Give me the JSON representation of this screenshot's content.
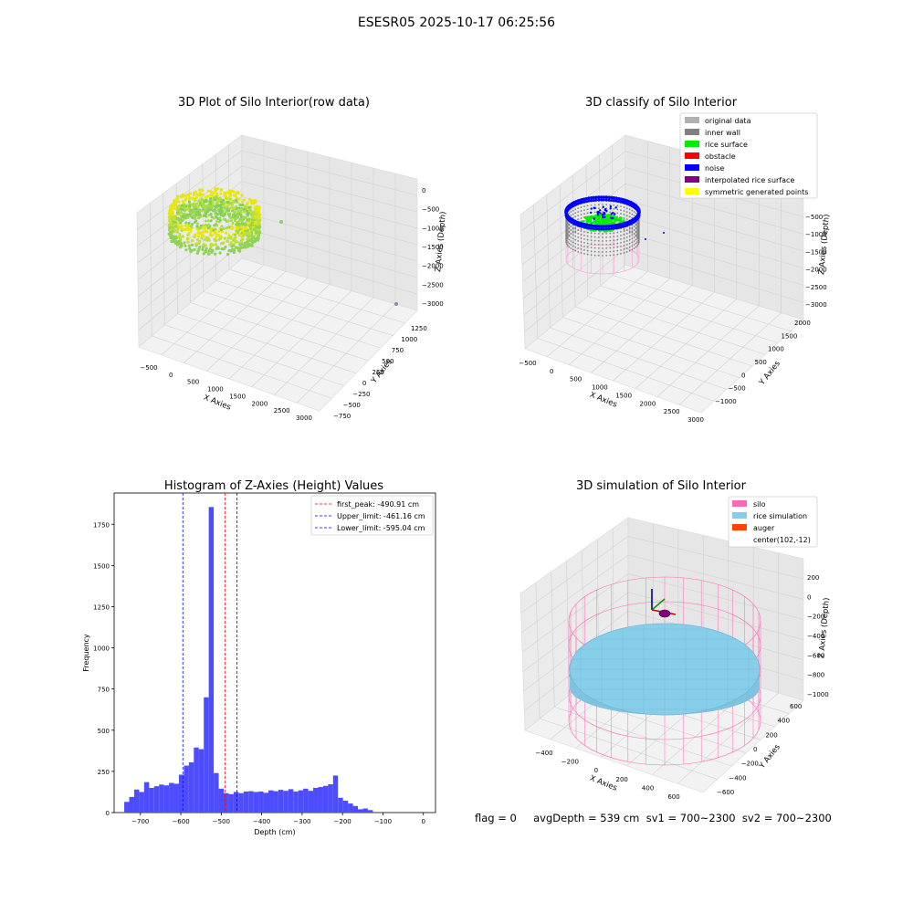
{
  "figure": {
    "suptitle": "ESESR05 2025-10-17 06:25:56",
    "status_text": "flag = 0     avgDepth = 539 cm  sv1 = 700~2300  sv2 = 700~2300"
  },
  "colors": {
    "hist_bar": "#4d4dff",
    "silo": "#ff69b4",
    "rice": "#87ceeb",
    "auger": "#ff4500",
    "inner_wall": "#808080",
    "rice_surface": "#00ee00",
    "noise": "#0000ff",
    "original": "#b0b0b0",
    "interpolated": "#800080",
    "symmetric": "#ffff00"
  },
  "chart_data": [
    {
      "type": "scatter",
      "title": "3D Plot of Silo Interior(row data)",
      "xlabel": "X Axies",
      "ylabel": "Y Axies",
      "zlabel": "Z Axies (Depth)",
      "x_ticks": [
        "−500",
        "0",
        "500",
        "1000",
        "1500",
        "2000",
        "2500",
        "3000"
      ],
      "y_ticks": [
        "−750",
        "−500",
        "−250",
        "0",
        "250",
        "500",
        "750",
        "1000",
        "1250"
      ],
      "z_ticks": [
        "0",
        "−500",
        "−1000",
        "−1500",
        "−2000",
        "−2500",
        "−3000"
      ],
      "xlim": [
        -600,
        3100
      ],
      "ylim": [
        -800,
        1400
      ],
      "zlim": [
        -3200,
        100
      ],
      "colormap": "viridis-yellow",
      "outliers": [
        {
          "x": 1200,
          "y": 300,
          "z": -800
        },
        {
          "x": 3000,
          "y": 1100,
          "z": -3000
        }
      ]
    },
    {
      "type": "scatter",
      "title": "3D classify of Silo Interior",
      "xlabel": "X Axies",
      "ylabel": "Y Axies",
      "zlabel": "Z Axies (Depth)",
      "x_ticks": [
        "−500",
        "0",
        "500",
        "1000",
        "1500",
        "2000",
        "2500",
        "3000"
      ],
      "y_ticks": [
        "−1000",
        "−500",
        "0",
        "500",
        "1000",
        "1500",
        "2000"
      ],
      "z_ticks": [
        "−500",
        "−1000",
        "−1500",
        "−2000",
        "−2500",
        "−3000"
      ],
      "legend": [
        "original data",
        "inner wall",
        "rice surface",
        "obstacle",
        "noise",
        "interpolated rice surface",
        "symmetric generated points"
      ],
      "legend_colors": [
        "#b0b0b0",
        "#808080",
        "#00ee00",
        "#ff0000",
        "#0000ff",
        "#800080",
        "#ffff00"
      ],
      "legend_position": "top-right"
    },
    {
      "type": "bar",
      "title": "Histogram of Z-Axies (Height) Values",
      "xlabel": "Depth (cm)",
      "ylabel": "Frequency",
      "xlim": [
        -765,
        30
      ],
      "ylim": [
        0,
        1940
      ],
      "x_ticks": [
        -700,
        -600,
        -500,
        -400,
        -300,
        -200,
        -100,
        0
      ],
      "x_tick_labels": [
        "−700",
        "−600",
        "−500",
        "−400",
        "−300",
        "−200",
        "−100",
        "0"
      ],
      "y_ticks": [
        0,
        250,
        500,
        750,
        1000,
        1250,
        1500,
        1750
      ],
      "bin_start": -740,
      "bin_width": 12.3,
      "values": [
        65,
        95,
        140,
        125,
        185,
        150,
        160,
        170,
        165,
        180,
        175,
        230,
        285,
        305,
        395,
        385,
        700,
        1855,
        240,
        145,
        118,
        112,
        125,
        118,
        128,
        130,
        125,
        128,
        120,
        135,
        130,
        138,
        132,
        142,
        128,
        135,
        145,
        132,
        150,
        155,
        162,
        172,
        225,
        90,
        72,
        55,
        40,
        20,
        25,
        15
      ],
      "lines": [
        {
          "label": "first_peak: -490.91 cm",
          "x": -490.91,
          "color": "#ff0000"
        },
        {
          "label": "Upper_limit: -461.16 cm",
          "x": -461.16,
          "color": "#0000ff"
        },
        {
          "label": "Lower_limit: -595.04 cm",
          "x": -595.04,
          "color": "#0000ff"
        }
      ],
      "legend_position": "top-right"
    },
    {
      "type": "scatter",
      "title": "3D simulation of Silo Interior",
      "xlabel": "X Axies",
      "ylabel": "Y Axies",
      "zlabel": "Z Axies (Depth)",
      "x_ticks": [
        "−400",
        "−200",
        "0",
        "200",
        "400",
        "600"
      ],
      "y_ticks": [
        "−600",
        "−400",
        "−200",
        "0",
        "200",
        "400",
        "600"
      ],
      "z_ticks": [
        "200",
        "0",
        "−200",
        "−400",
        "−600",
        "−800",
        "−1000"
      ],
      "legend": [
        "silo",
        "rice simulation",
        "auger",
        "center(102,-12)"
      ],
      "legend_colors": [
        "#ff69b4",
        "#87ceeb",
        "#ff4500",
        ""
      ],
      "legend_position": "top-right"
    }
  ]
}
